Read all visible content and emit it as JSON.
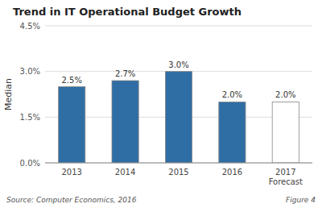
{
  "chart_data": {
    "type": "bar",
    "title": "Trend in IT Operational Budget Growth",
    "categories": [
      "2013",
      "2014",
      "2015",
      "2016",
      "2017\nForecast"
    ],
    "values": [
      2.5,
      2.7,
      3.0,
      2.0,
      2.0
    ],
    "value_labels": [
      "2.5%",
      "2.7%",
      "3.0%",
      "2.0%",
      "2.0%"
    ],
    "data_labels": true,
    "colors": [
      "#2F6EA5",
      "#2F6EA5",
      "#2F6EA5",
      "#2F6EA5",
      "#FFFFFF"
    ],
    "ylabel": "Median",
    "ylim": [
      0,
      4.5
    ],
    "yticks": [
      {
        "value": 0.0,
        "label": "0.0%"
      },
      {
        "value": 1.5,
        "label": "1.5%"
      },
      {
        "value": 3.0,
        "label": "3.0%"
      },
      {
        "value": 4.5,
        "label": "4.5%"
      }
    ],
    "grid": true,
    "annotations": [
      "Source: Computer Economics, 2016",
      "Figure 4"
    ]
  }
}
